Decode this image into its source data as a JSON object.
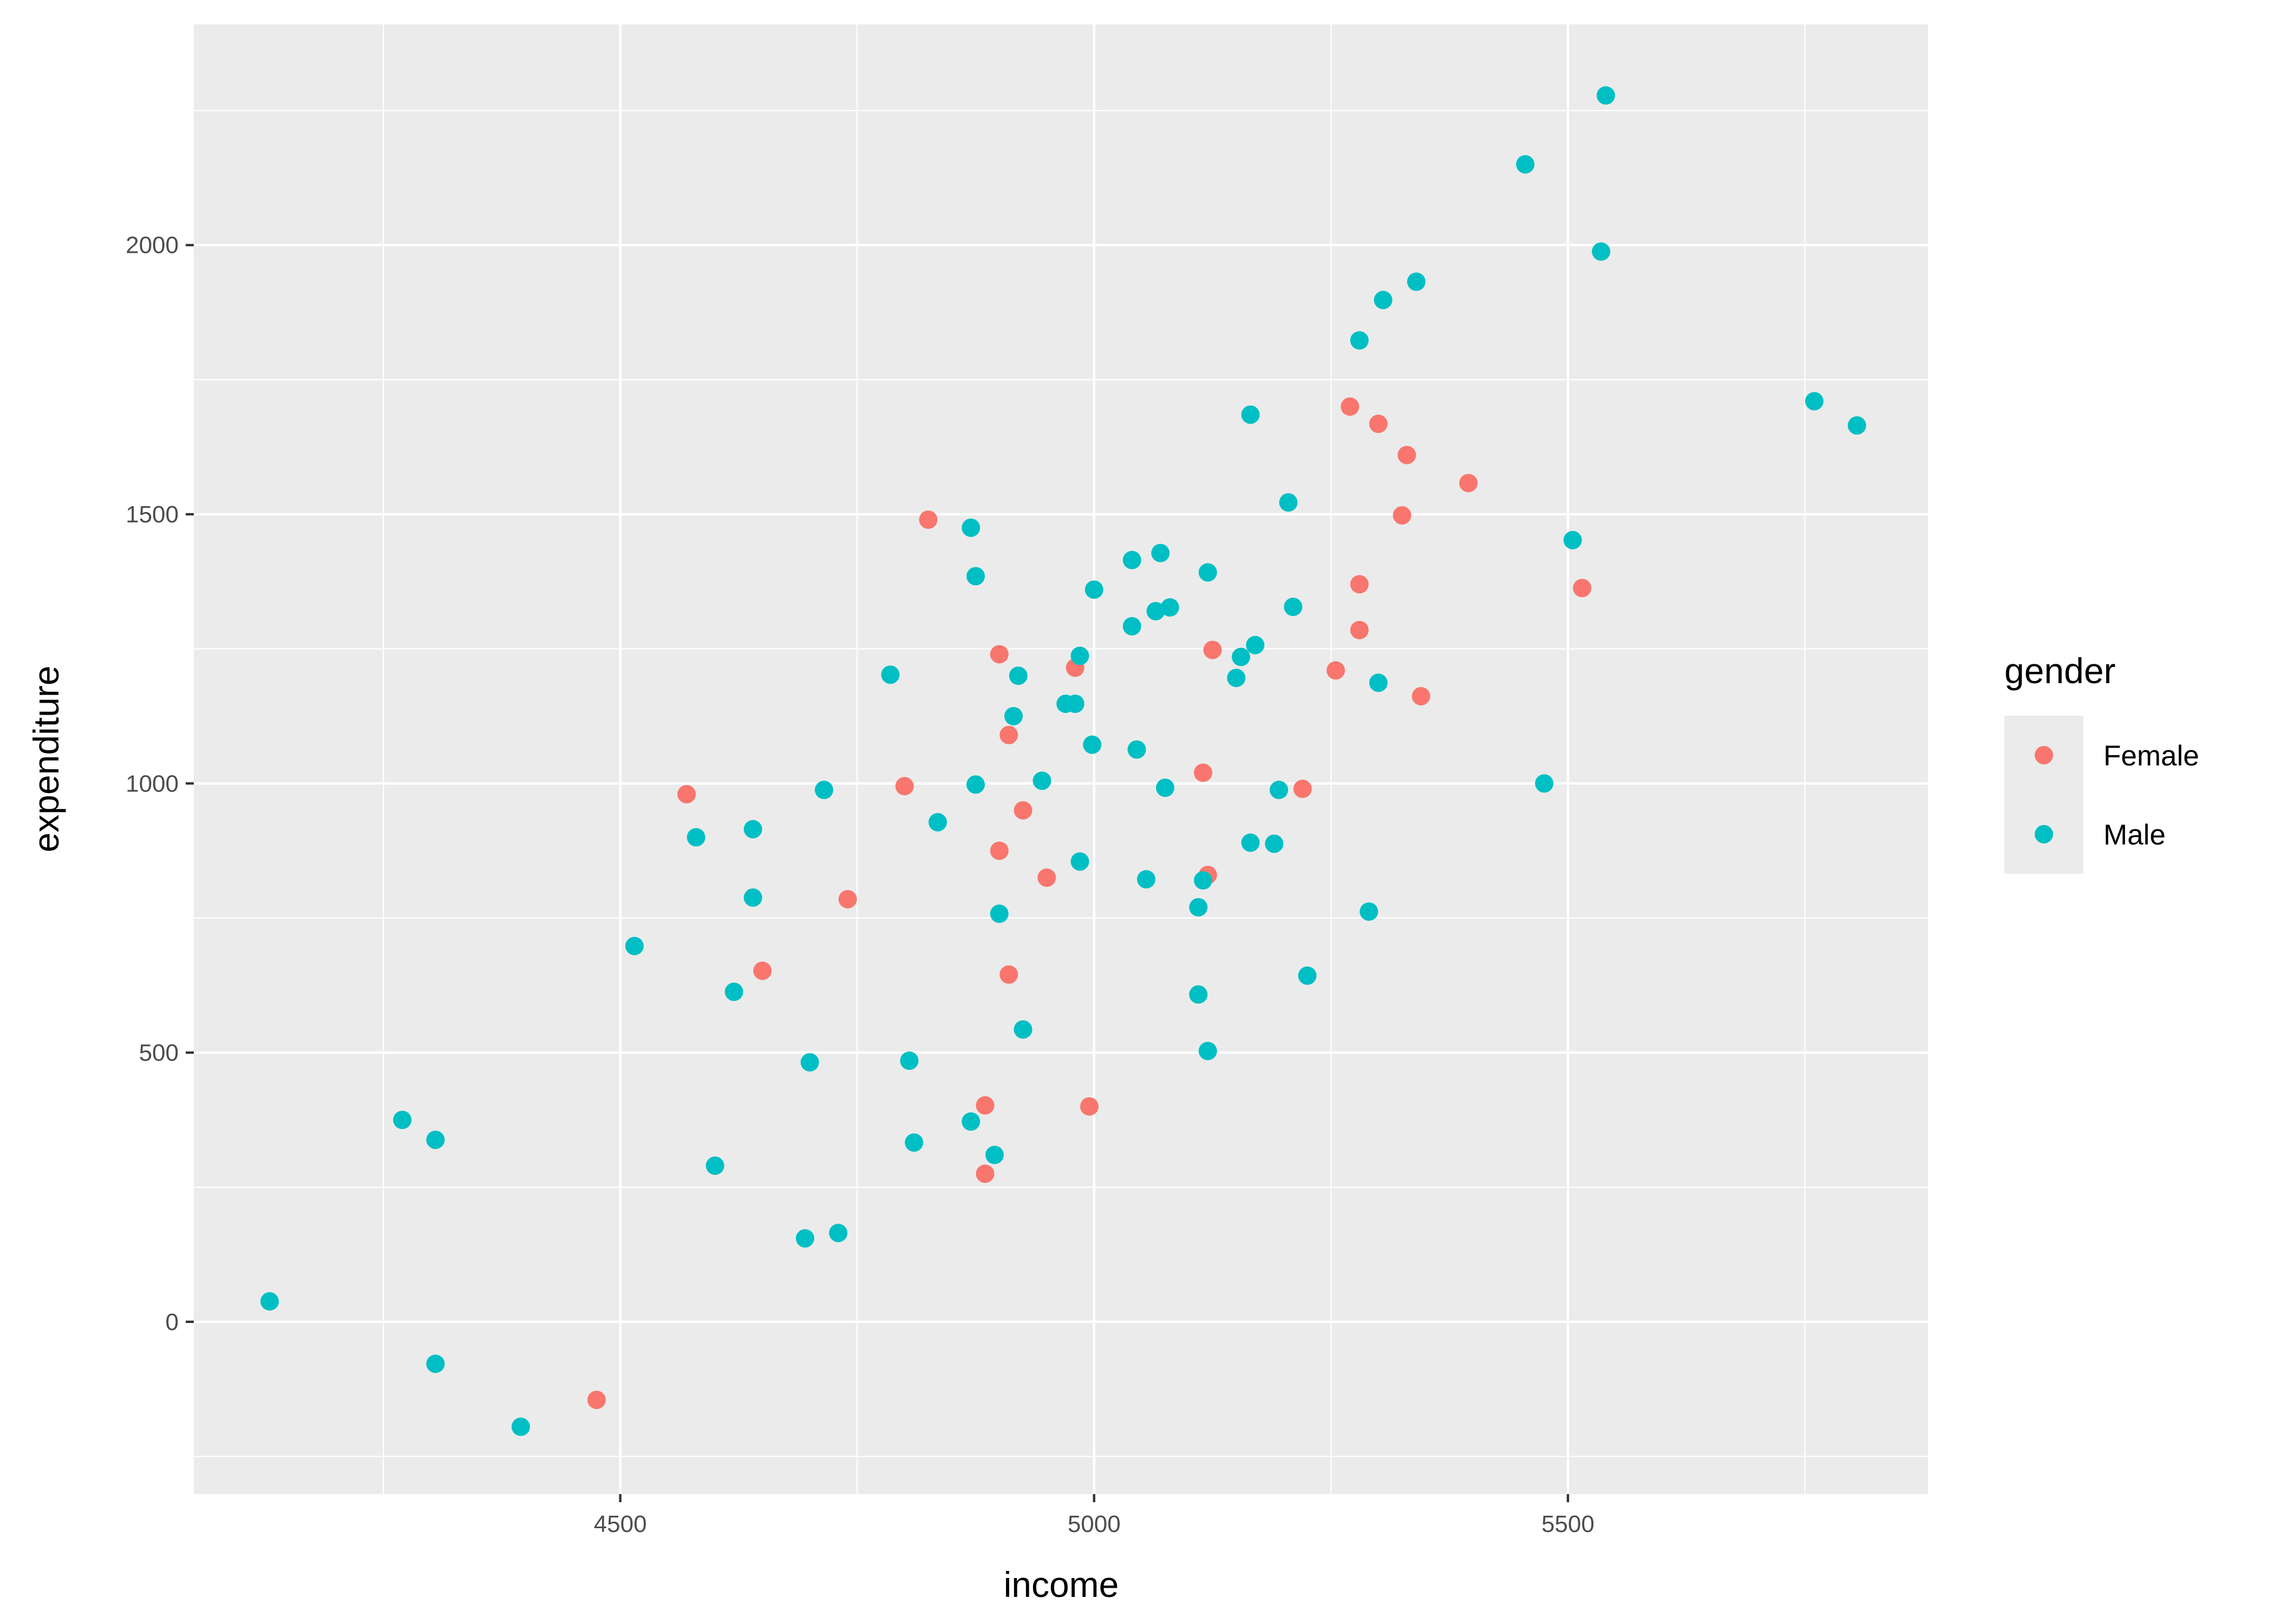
{
  "chart_data": {
    "type": "scatter",
    "xlabel": "income",
    "ylabel": "expenditure",
    "xlim": [
      4050,
      5880
    ],
    "ylim": [
      -320,
      2410
    ],
    "xticks": [
      4500,
      5000,
      5500
    ],
    "yticks": [
      0,
      500,
      1000,
      1500,
      2000
    ],
    "grid": true,
    "legend": {
      "title": "gender",
      "position": "right"
    },
    "series": [
      {
        "name": "Female",
        "color": "#F8766D",
        "points": [
          [
            4825,
            1490
          ],
          [
            4900,
            1240
          ],
          [
            4980,
            1215
          ],
          [
            4910,
            1090
          ],
          [
            4570,
            980
          ],
          [
            4800,
            995
          ],
          [
            4925,
            950
          ],
          [
            4900,
            875
          ],
          [
            4950,
            825
          ],
          [
            4740,
            785
          ],
          [
            4910,
            645
          ],
          [
            4650,
            652
          ],
          [
            4885,
            402
          ],
          [
            4995,
            400
          ],
          [
            4885,
            275
          ],
          [
            4475,
            -145
          ],
          [
            5115,
            1020
          ],
          [
            5125,
            1248
          ],
          [
            5120,
            830
          ],
          [
            5220,
            990
          ],
          [
            5255,
            1210
          ],
          [
            5270,
            1700
          ],
          [
            5300,
            1668
          ],
          [
            5280,
            1370
          ],
          [
            5280,
            1285
          ],
          [
            5330,
            1610
          ],
          [
            5325,
            1498
          ],
          [
            5345,
            1162
          ],
          [
            5395,
            1558
          ],
          [
            5515,
            1363
          ]
        ]
      },
      {
        "name": "Male",
        "color": "#00BFC4",
        "points": [
          [
            4130,
            38
          ],
          [
            4270,
            375
          ],
          [
            4305,
            338
          ],
          [
            4305,
            -78
          ],
          [
            4395,
            -195
          ],
          [
            4515,
            698
          ],
          [
            4580,
            900
          ],
          [
            4600,
            290
          ],
          [
            4620,
            613
          ],
          [
            4640,
            915
          ],
          [
            4640,
            788
          ],
          [
            4695,
            155
          ],
          [
            4700,
            482
          ],
          [
            4715,
            988
          ],
          [
            4730,
            165
          ],
          [
            4785,
            1202
          ],
          [
            4805,
            485
          ],
          [
            4810,
            333
          ],
          [
            4835,
            928
          ],
          [
            4870,
            1475
          ],
          [
            4870,
            372
          ],
          [
            4875,
            1385
          ],
          [
            4875,
            998
          ],
          [
            4895,
            310
          ],
          [
            4900,
            758
          ],
          [
            4915,
            1125
          ],
          [
            4920,
            1200
          ],
          [
            4925,
            543
          ],
          [
            4945,
            1005
          ],
          [
            4970,
            1148
          ],
          [
            4980,
            1148
          ],
          [
            4985,
            1237
          ],
          [
            4985,
            855
          ],
          [
            4998,
            1072
          ],
          [
            5000,
            1360
          ],
          [
            5040,
            1415
          ],
          [
            5040,
            1292
          ],
          [
            5045,
            1063
          ],
          [
            5055,
            822
          ],
          [
            5065,
            1320
          ],
          [
            5070,
            1428
          ],
          [
            5080,
            1327
          ],
          [
            5075,
            992
          ],
          [
            5110,
            770
          ],
          [
            5110,
            608
          ],
          [
            5115,
            820
          ],
          [
            5120,
            1392
          ],
          [
            5120,
            503
          ],
          [
            5150,
            1196
          ],
          [
            5155,
            1235
          ],
          [
            5165,
            1685
          ],
          [
            5165,
            890
          ],
          [
            5170,
            1257
          ],
          [
            5190,
            888
          ],
          [
            5195,
            988
          ],
          [
            5205,
            1522
          ],
          [
            5210,
            1328
          ],
          [
            5225,
            643
          ],
          [
            5280,
            1823
          ],
          [
            5290,
            762
          ],
          [
            5300,
            1187
          ],
          [
            5305,
            1898
          ],
          [
            5340,
            1932
          ],
          [
            5455,
            2150
          ],
          [
            5475,
            1000
          ],
          [
            5505,
            1452
          ],
          [
            5535,
            1988
          ],
          [
            5540,
            2278
          ],
          [
            5760,
            1710
          ],
          [
            5805,
            1665
          ]
        ]
      }
    ]
  }
}
